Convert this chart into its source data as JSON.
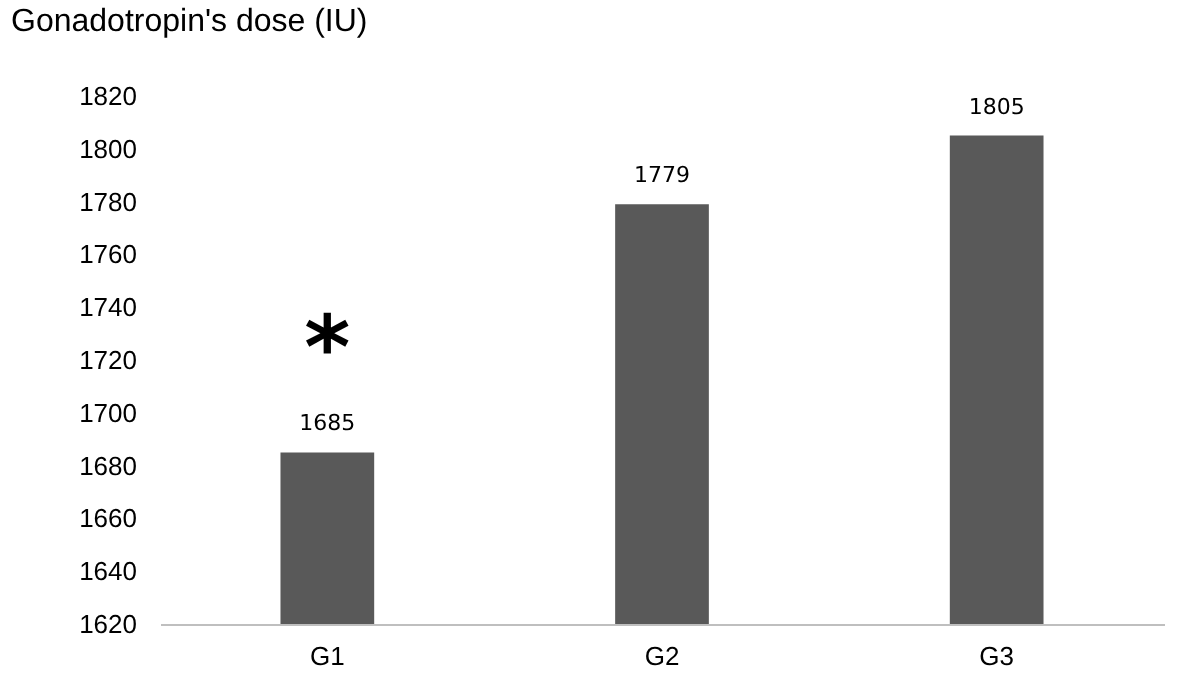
{
  "chart_data": {
    "type": "bar",
    "ylabel": "Gonadotropin's dose (IU)",
    "categories": [
      "G1",
      "G2",
      "G3"
    ],
    "values": [
      1685,
      1779,
      1805
    ],
    "color": "#595959",
    "ylim": [
      1620,
      1820
    ],
    "yticks": [
      1620,
      1640,
      1660,
      1680,
      1700,
      1720,
      1740,
      1760,
      1780,
      1800,
      1820
    ],
    "data_labels": true,
    "grid": false,
    "annotations": [
      "*"
    ]
  }
}
